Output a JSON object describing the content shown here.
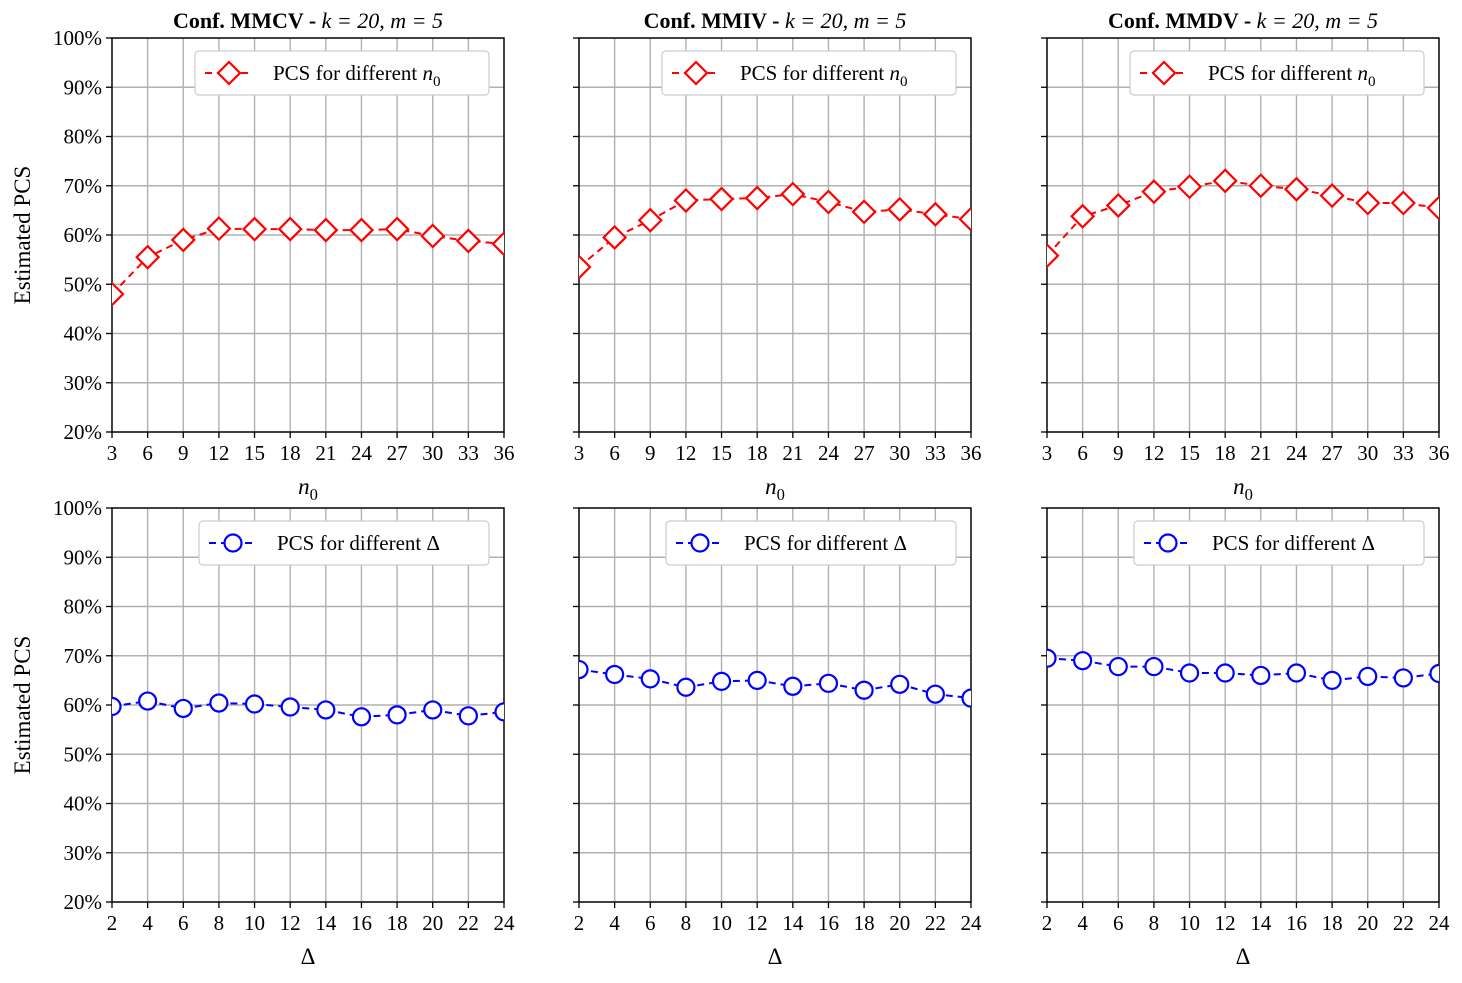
{
  "chart_data": [
    {
      "type": "line",
      "title_bold": "Conf. MMCV - ",
      "title_math": "k = 20, m = 5",
      "xlabel": "n0",
      "ylabel": "Estimated PCS",
      "x": [
        3,
        6,
        9,
        12,
        15,
        18,
        21,
        24,
        27,
        30,
        33,
        36
      ],
      "xlim": [
        3,
        36
      ],
      "ylim": [
        20,
        100
      ],
      "yticks": [
        "20%",
        "30%",
        "40%",
        "50%",
        "60%",
        "70%",
        "80%",
        "90%",
        "100%"
      ],
      "grid": true,
      "legend": "top-right",
      "series": [
        {
          "name": "PCS for different n0",
          "color": "#ff0000",
          "marker": "diamond",
          "values": [
            48,
            55.5,
            59,
            61.3,
            61.2,
            61.2,
            61,
            61,
            61.2,
            59.8,
            58.8,
            58.2
          ]
        }
      ]
    },
    {
      "type": "line",
      "title_bold": "Conf. MMIV - ",
      "title_math": "k = 20, m = 5",
      "xlabel": "n0",
      "ylabel": "",
      "x": [
        3,
        6,
        9,
        12,
        15,
        18,
        21,
        24,
        27,
        30,
        33,
        36
      ],
      "xlim": [
        3,
        36
      ],
      "ylim": [
        20,
        100
      ],
      "yticks": [],
      "grid": true,
      "legend": "top-right",
      "series": [
        {
          "name": "PCS for different n0",
          "color": "#ff0000",
          "marker": "diamond",
          "values": [
            53.5,
            59.5,
            63,
            67,
            67.3,
            67.5,
            68.3,
            66.7,
            64.7,
            65.2,
            64.2,
            63.2
          ]
        }
      ]
    },
    {
      "type": "line",
      "title_bold": "Conf. MMDV - ",
      "title_math": "k = 20, m = 5",
      "xlabel": "n0",
      "ylabel": "",
      "x": [
        3,
        6,
        9,
        12,
        15,
        18,
        21,
        24,
        27,
        30,
        33,
        36
      ],
      "xlim": [
        3,
        36
      ],
      "ylim": [
        20,
        100
      ],
      "yticks": [],
      "grid": true,
      "legend": "top-right",
      "series": [
        {
          "name": "PCS for different n0",
          "color": "#ff0000",
          "marker": "diamond",
          "values": [
            55.8,
            63.8,
            66,
            68.8,
            69.8,
            71,
            70,
            69.3,
            68,
            66.5,
            66.5,
            65.5
          ]
        }
      ]
    },
    {
      "type": "line",
      "title_bold": "",
      "title_math": "",
      "xlabel": "Δ",
      "ylabel": "Estimated PCS",
      "x": [
        2,
        4,
        6,
        8,
        10,
        12,
        14,
        16,
        18,
        20,
        22,
        24
      ],
      "xlim": [
        2,
        24
      ],
      "ylim": [
        20,
        100
      ],
      "yticks": [
        "20%",
        "30%",
        "40%",
        "50%",
        "60%",
        "70%",
        "80%",
        "90%",
        "100%"
      ],
      "grid": true,
      "legend": "top-right",
      "series": [
        {
          "name": "PCS for different Δ",
          "color": "#0000ff",
          "marker": "circle",
          "values": [
            59.7,
            60.8,
            59.3,
            60.4,
            60.2,
            59.6,
            59,
            57.6,
            58,
            59,
            57.8,
            58.6
          ]
        }
      ]
    },
    {
      "type": "line",
      "title_bold": "",
      "title_math": "",
      "xlabel": "Δ",
      "ylabel": "",
      "x": [
        2,
        4,
        6,
        8,
        10,
        12,
        14,
        16,
        18,
        20,
        22,
        24
      ],
      "xlim": [
        2,
        24
      ],
      "ylim": [
        20,
        100
      ],
      "yticks": [],
      "grid": true,
      "legend": "top-right",
      "series": [
        {
          "name": "PCS for different Δ",
          "color": "#0000ff",
          "marker": "circle",
          "values": [
            67.2,
            66.2,
            65.3,
            63.6,
            64.8,
            65,
            63.8,
            64.4,
            63,
            64.2,
            62.2,
            61.4
          ]
        }
      ]
    },
    {
      "type": "line",
      "title_bold": "",
      "title_math": "",
      "xlabel": "Δ",
      "ylabel": "",
      "x": [
        2,
        4,
        6,
        8,
        10,
        12,
        14,
        16,
        18,
        20,
        22,
        24
      ],
      "xlim": [
        2,
        24
      ],
      "ylim": [
        20,
        100
      ],
      "yticks": [],
      "grid": true,
      "legend": "top-right",
      "series": [
        {
          "name": "PCS for different Δ",
          "color": "#0000ff",
          "marker": "circle",
          "values": [
            69.5,
            69,
            67.8,
            67.8,
            66.5,
            66.5,
            66,
            66.5,
            65,
            65.8,
            65.5,
            66.4
          ]
        }
      ]
    }
  ]
}
